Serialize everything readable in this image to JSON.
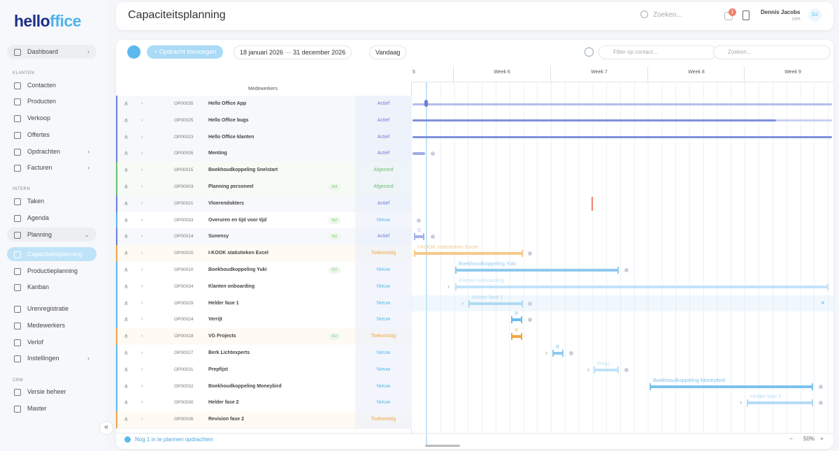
{
  "sidebar": {
    "logo_hello": "hello",
    "logo_ffice": "ffice",
    "collapse": "«",
    "groups": [
      {
        "items": [
          "Dashboard"
        ]
      },
      {
        "title": "KLANTEN",
        "items": [
          "Contacten",
          "Producten",
          "Verkoop",
          "Offertes",
          "Opdrachten",
          "Facturen"
        ]
      },
      {
        "title": "INTERN",
        "items": [
          "Taken",
          "Agenda",
          "Planning",
          "Capaciteitsplanning",
          "Productieplanning",
          "Kanban"
        ]
      },
      {
        "items": [
          "Urenregistratie",
          "Medewerkers",
          "Verlof",
          "Instellingen"
        ]
      },
      {
        "title": "CRM",
        "items": [
          "Versie beheer",
          "Master"
        ]
      }
    ]
  },
  "header": {
    "title": "Capaciteitsplanning",
    "search": "Zoeken...",
    "badge": "1",
    "user_name": "Dennis Jacobs",
    "user_role": "crm",
    "initials": "DJ"
  },
  "toolbar": {
    "add": "Opdracht toevoegen",
    "date_from": "18 januari 2026",
    "dash": "—",
    "date_to": "31 december 2026",
    "today": "Vandaag",
    "filter": "Filter op contact...",
    "search": "Zoeken..."
  },
  "table": {
    "column_header": "Medewerkers",
    "rows": [
      {
        "code": "OP00035",
        "name": "Hello Office App",
        "status": "Actief"
      },
      {
        "code": "OP00025",
        "name": "Hello Office bugs",
        "status": "Actief"
      },
      {
        "code": "OP00023",
        "name": "Hello Office klanten",
        "status": "Actief"
      },
      {
        "code": "OP00005",
        "name": "Menting",
        "status": "Actief"
      },
      {
        "code": "OP00015",
        "name": "Boekhoudkoppeling Snelstart",
        "status": "Afgerond"
      },
      {
        "code": "OP00003",
        "name": "Planning personeel",
        "tag": "MJ",
        "status": "Afgerond"
      },
      {
        "code": "OP00021",
        "name": "Vloerendokters",
        "status": "Actief"
      },
      {
        "code": "OP00033",
        "name": "Overuren en tijd voor tijd",
        "tag": "NJ",
        "status": "Nieuw"
      },
      {
        "code": "OP00014",
        "name": "Sunensy",
        "tag": "NJ",
        "status": "Actief"
      },
      {
        "code": "OP00020",
        "name": "I-KOOK statistieken Excel",
        "status": "Toekomstig"
      },
      {
        "code": "OP00010",
        "name": "Boekhoudkoppeling Yuki",
        "tag": "DJ",
        "status": "Nieuw"
      },
      {
        "code": "OP00034",
        "name": "Klanten onboarding",
        "status": "Nieuw"
      },
      {
        "code": "OP00029",
        "name": "Helder fase 1",
        "status": "Nieuw"
      },
      {
        "code": "OP00024",
        "name": "Verrijt",
        "status": "Nieuw"
      },
      {
        "code": "OP00018",
        "name": "VG Projects",
        "tag": "DJ",
        "status": "Toekomstig"
      },
      {
        "code": "OP00027",
        "name": "Berk Lichtexperts",
        "status": "Nieuw"
      },
      {
        "code": "OP00031",
        "name": "Prepfijst",
        "status": "Nieuw"
      },
      {
        "code": "OP00032",
        "name": "Boekhoudkoppeling Moneybird",
        "status": "Nieuw"
      },
      {
        "code": "OP00030",
        "name": "Helder fase 2",
        "status": "Nieuw"
      },
      {
        "code": "OP00036",
        "name": "Revision fase 2",
        "status": "Toekomstig"
      }
    ]
  },
  "gantt": {
    "weeks": [
      "5",
      "Week 6",
      "Week 7",
      "Week 8",
      "Week 9"
    ],
    "bar_labels": [
      "S",
      "I-KOOK statistieken Excel",
      "Boekhoudkoppeling Yuki",
      "Klanten onboarding",
      "Helder fase 1",
      "V",
      "V",
      "B",
      "Prepi...",
      "Boekhoudkoppeling Moneybird",
      "Helder fase 2"
    ]
  },
  "footer": {
    "unplanned": "Nog 1 in te plannen opdrachten",
    "zoom": "50%",
    "minus": "−",
    "plus": "+"
  }
}
